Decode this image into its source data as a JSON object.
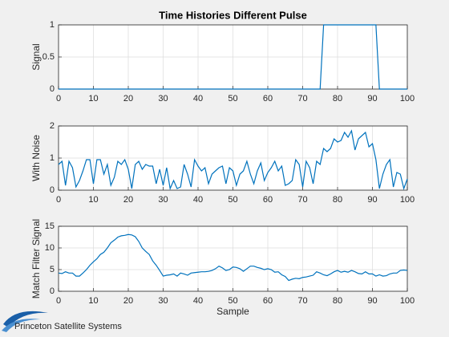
{
  "logo": "Princeton Satellite Systems",
  "chart_data": [
    {
      "type": "line",
      "title": "Time Histories Different Pulse",
      "ylabel": "Signal",
      "color": "#0072bd",
      "grid": true,
      "x": [
        0,
        1,
        2,
        3,
        4,
        5,
        6,
        7,
        8,
        9,
        10,
        11,
        12,
        13,
        14,
        15,
        16,
        17,
        18,
        19,
        20,
        21,
        22,
        23,
        24,
        25,
        26,
        27,
        28,
        29,
        30,
        31,
        32,
        33,
        34,
        35,
        36,
        37,
        38,
        39,
        40,
        41,
        42,
        43,
        44,
        45,
        46,
        47,
        48,
        49,
        50,
        51,
        52,
        53,
        54,
        55,
        56,
        57,
        58,
        59,
        60,
        61,
        62,
        63,
        64,
        65,
        66,
        67,
        68,
        69,
        70,
        71,
        72,
        73,
        74,
        75,
        76,
        77,
        78,
        79,
        80,
        81,
        82,
        83,
        84,
        85,
        86,
        87,
        88,
        89,
        90,
        91,
        92,
        93,
        94,
        95,
        96,
        97,
        98,
        99,
        100
      ],
      "values": [
        0,
        0,
        0,
        0,
        0,
        0,
        0,
        0,
        0,
        0,
        0,
        0,
        0,
        0,
        0,
        0,
        0,
        0,
        0,
        0,
        0,
        0,
        0,
        0,
        0,
        0,
        0,
        0,
        0,
        0,
        0,
        0,
        0,
        0,
        0,
        0,
        0,
        0,
        0,
        0,
        0,
        0,
        0,
        0,
        0,
        0,
        0,
        0,
        0,
        0,
        0,
        0,
        0,
        0,
        0,
        0,
        0,
        0,
        0,
        0,
        0,
        0,
        0,
        0,
        0,
        0,
        0,
        0,
        0,
        0,
        0,
        0,
        0,
        0,
        0,
        0,
        1,
        1,
        1,
        1,
        1,
        1,
        1,
        1,
        1,
        1,
        1,
        1,
        1,
        1,
        1,
        1,
        0,
        0,
        0,
        0,
        0,
        0,
        0,
        0,
        0
      ],
      "xlim": [
        0,
        100
      ],
      "xticks": [
        0,
        10,
        20,
        30,
        40,
        50,
        60,
        70,
        80,
        90,
        100
      ],
      "ylim": [
        0,
        1
      ],
      "yticks": [
        0,
        0.5,
        1
      ]
    },
    {
      "type": "line",
      "ylabel": "With Noise",
      "color": "#0072bd",
      "grid": true,
      "x": [
        0,
        1,
        2,
        3,
        4,
        5,
        6,
        7,
        8,
        9,
        10,
        11,
        12,
        13,
        14,
        15,
        16,
        17,
        18,
        19,
        20,
        21,
        22,
        23,
        24,
        25,
        26,
        27,
        28,
        29,
        30,
        31,
        32,
        33,
        34,
        35,
        36,
        37,
        38,
        39,
        40,
        41,
        42,
        43,
        44,
        45,
        46,
        47,
        48,
        49,
        50,
        51,
        52,
        53,
        54,
        55,
        56,
        57,
        58,
        59,
        60,
        61,
        62,
        63,
        64,
        65,
        66,
        67,
        68,
        69,
        70,
        71,
        72,
        73,
        74,
        75,
        76,
        77,
        78,
        79,
        80,
        81,
        82,
        83,
        84,
        85,
        86,
        87,
        88,
        89,
        90,
        91,
        92,
        93,
        94,
        95,
        96,
        97,
        98,
        99,
        100
      ],
      "values": [
        0.8,
        0.9,
        0.15,
        0.9,
        0.7,
        0.1,
        0.3,
        0.6,
        0.95,
        0.95,
        0.2,
        0.95,
        0.95,
        0.5,
        0.8,
        0.15,
        0.4,
        0.9,
        0.8,
        0.95,
        0.65,
        0.05,
        0.8,
        0.9,
        0.65,
        0.8,
        0.75,
        0.75,
        0.2,
        0.65,
        0.15,
        0.7,
        0.05,
        0.3,
        0.05,
        0.1,
        0.8,
        0.5,
        0.1,
        0.95,
        0.75,
        0.6,
        0.7,
        0.2,
        0.5,
        0.6,
        0.7,
        0.75,
        0.2,
        0.7,
        0.6,
        0.15,
        0.5,
        0.6,
        0.9,
        0.5,
        0.2,
        0.6,
        0.85,
        0.3,
        0.55,
        0.7,
        0.9,
        0.6,
        0.75,
        0.15,
        0.2,
        0.3,
        0.95,
        0.8,
        0.1,
        0.9,
        0.7,
        0.2,
        0.9,
        0.8,
        1.3,
        1.2,
        1.3,
        1.6,
        1.5,
        1.55,
        1.8,
        1.65,
        1.85,
        1.25,
        1.6,
        1.7,
        1.8,
        1.35,
        1.45,
        0.95,
        0.05,
        0.5,
        0.8,
        0.95,
        0.1,
        0.55,
        0.5,
        0.05,
        0.35
      ],
      "xlim": [
        0,
        100
      ],
      "xticks": [
        0,
        10,
        20,
        30,
        40,
        50,
        60,
        70,
        80,
        90,
        100
      ],
      "ylim": [
        0,
        2
      ],
      "yticks": [
        0,
        1,
        2
      ]
    },
    {
      "type": "line",
      "ylabel": "Match Filter Signal",
      "xlabel": "Sample",
      "color": "#0072bd",
      "grid": true,
      "x": [
        0,
        1,
        2,
        3,
        4,
        5,
        6,
        7,
        8,
        9,
        10,
        11,
        12,
        13,
        14,
        15,
        16,
        17,
        18,
        19,
        20,
        21,
        22,
        23,
        24,
        25,
        26,
        27,
        28,
        29,
        30,
        31,
        32,
        33,
        34,
        35,
        36,
        37,
        38,
        39,
        40,
        41,
        42,
        43,
        44,
        45,
        46,
        47,
        48,
        49,
        50,
        51,
        52,
        53,
        54,
        55,
        56,
        57,
        58,
        59,
        60,
        61,
        62,
        63,
        64,
        65,
        66,
        67,
        68,
        69,
        70,
        71,
        72,
        73,
        74,
        75,
        76,
        77,
        78,
        79,
        80,
        81,
        82,
        83,
        84,
        85,
        86,
        87,
        88,
        89,
        90,
        91,
        92,
        93,
        94,
        95,
        96,
        97,
        98,
        99,
        100
      ],
      "values": [
        4.2,
        4.1,
        4.5,
        4.2,
        4.2,
        3.5,
        3.5,
        4.2,
        5,
        6,
        6.8,
        7.5,
        8.5,
        9,
        10,
        11.2,
        11.8,
        12.5,
        12.8,
        12.9,
        13.1,
        13,
        12.6,
        11.5,
        10,
        9.2,
        8.5,
        7,
        6,
        4.8,
        3.5,
        3.7,
        3.8,
        4,
        3.5,
        4.2,
        4,
        3.7,
        4.2,
        4.3,
        4.4,
        4.5,
        4.5,
        4.6,
        4.8,
        5.2,
        5.8,
        5.4,
        4.8,
        5,
        5.6,
        5.5,
        5.2,
        4.6,
        5.2,
        5.8,
        5.8,
        5.5,
        5.3,
        5,
        5.2,
        5,
        4.4,
        4.5,
        3.8,
        3.4,
        2.5,
        2.8,
        3,
        2.9,
        3.2,
        3.3,
        3.5,
        3.7,
        4.5,
        4.2,
        3.8,
        3.6,
        4,
        4.5,
        4.8,
        4.4,
        4.6,
        4.4,
        4.8,
        4.5,
        4.1,
        4,
        4.5,
        4,
        4,
        3.5,
        3.8,
        3.5,
        3.6,
        4,
        4.2,
        4.2,
        4.8,
        4.9,
        4.8
      ],
      "xlim": [
        0,
        100
      ],
      "xticks": [
        0,
        10,
        20,
        30,
        40,
        50,
        60,
        70,
        80,
        90,
        100
      ],
      "ylim": [
        0,
        15
      ],
      "yticks": [
        0,
        5,
        10,
        15
      ]
    }
  ]
}
